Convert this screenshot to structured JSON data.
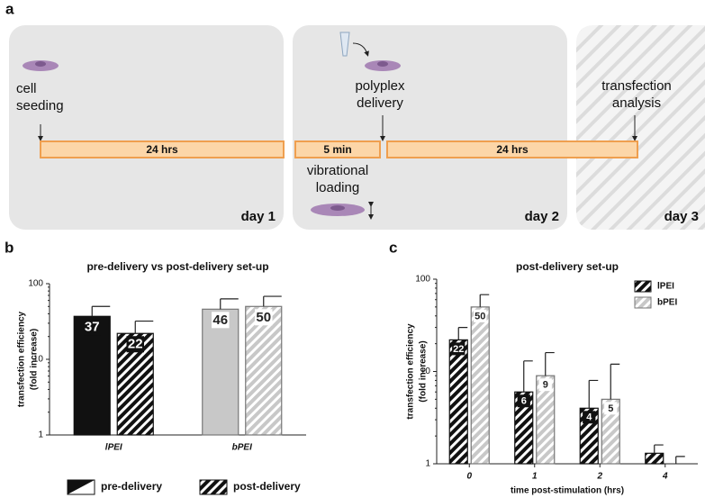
{
  "figure": {
    "panel_labels": [
      "a",
      "b",
      "c"
    ],
    "diagram": {
      "steps": [
        {
          "lines": [
            "cell",
            "seeding"
          ]
        },
        {
          "lines": [
            "polyplex",
            "delivery"
          ]
        },
        {
          "lines": [
            "transfection",
            "analysis"
          ]
        },
        {
          "lines": [
            "vibrational",
            "loading"
          ]
        }
      ],
      "durations": [
        "24 hrs",
        "5 min",
        "24 hrs"
      ],
      "days": [
        "day 1",
        "day 2",
        "day 3"
      ]
    }
  },
  "chart_data": [
    {
      "type": "bar",
      "title": "pre-delivery vs post-delivery set-up",
      "ylabel": [
        "transfection efficiency",
        "(fold increase)"
      ],
      "categories": [
        "lPEI",
        "bPEI"
      ],
      "category_colors": [
        "#111111",
        "#c8c8c8"
      ],
      "series": [
        {
          "name": "pre-delivery",
          "pattern": "solid",
          "values": [
            37,
            46
          ],
          "errors": [
            13,
            17
          ]
        },
        {
          "name": "post-delivery",
          "pattern": "hatch",
          "values": [
            22,
            50
          ],
          "errors": [
            10,
            18
          ]
        }
      ],
      "log_y": true,
      "ylim": [
        1,
        100
      ],
      "yticks": [
        1,
        10,
        100
      ],
      "legend": "bottom"
    },
    {
      "type": "bar",
      "title": "post-delivery set-up",
      "ylabel": [
        "transfection efficiency",
        "(fold increase)"
      ],
      "xlabel": "time post-stimulation (hrs)",
      "categories": [
        "0",
        "1",
        "2",
        "4"
      ],
      "series": [
        {
          "name": "lPEI",
          "color": "#111111",
          "pattern": "hatch",
          "values": [
            22,
            6,
            4,
            1.3
          ],
          "value_labels": [
            "22",
            "6",
            "4",
            null
          ],
          "errors": [
            8,
            7,
            4,
            0.3
          ]
        },
        {
          "name": "bPEI",
          "color": "#c8c8c8",
          "pattern": "hatch",
          "values": [
            50,
            9,
            5,
            1
          ],
          "value_labels": [
            "50",
            "9",
            "5",
            null
          ],
          "errors": [
            18,
            7,
            7,
            0.2
          ]
        }
      ],
      "log_y": true,
      "ylim": [
        1,
        100
      ],
      "yticks": [
        1,
        10,
        100
      ],
      "legend": "upper right"
    }
  ]
}
